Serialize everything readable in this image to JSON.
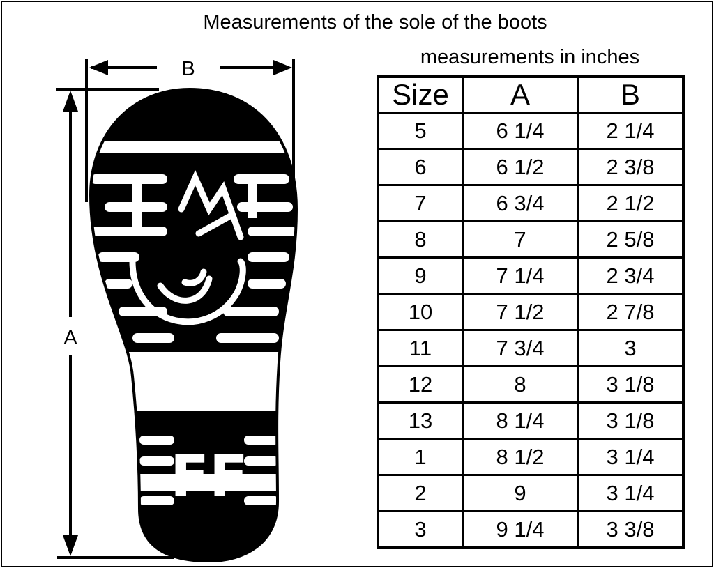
{
  "title": "Measurements of the sole of the boots",
  "subtitle": "measurements in inches",
  "diagram_labels": {
    "width": "B",
    "length": "A"
  },
  "sole_logo_text": "FF",
  "table": {
    "headers": [
      "Size",
      "A",
      "B"
    ],
    "rows": [
      [
        "5",
        "6 1/4",
        "2 1/4"
      ],
      [
        "6",
        "6 1/2",
        "2 3/8"
      ],
      [
        "7",
        "6 3/4",
        "2 1/2"
      ],
      [
        "8",
        "7",
        "2 5/8"
      ],
      [
        "9",
        "7 1/4",
        "2 3/4"
      ],
      [
        "10",
        "7 1/2",
        "2 7/8"
      ],
      [
        "11",
        "7 3/4",
        "3"
      ],
      [
        "12",
        "8",
        "3 1/8"
      ],
      [
        "13",
        "8 1/4",
        "3 1/8"
      ],
      [
        "1",
        "8 1/2",
        "3 1/4"
      ],
      [
        "2",
        "9",
        "3 1/4"
      ],
      [
        "3",
        "9 1/4",
        "3 3/8"
      ]
    ]
  }
}
